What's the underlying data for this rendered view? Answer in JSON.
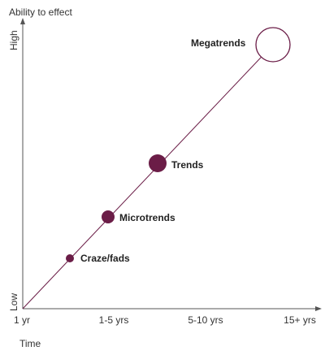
{
  "y_axis": {
    "title": "Ability to effect",
    "high_label": "High",
    "low_label": "Low"
  },
  "x_axis": {
    "title": "Time",
    "ticks": [
      "1 yr",
      "1-5 yrs",
      "5-10 yrs",
      "15+ yrs"
    ]
  },
  "colors": {
    "accent": "#6b1d47",
    "axis": "#555555"
  },
  "points": [
    {
      "label": "Craze/fads",
      "style": "filled",
      "relative_size": 1
    },
    {
      "label": "Microtrends",
      "style": "filled",
      "relative_size": 1.6
    },
    {
      "label": "Trends",
      "style": "filled",
      "relative_size": 2
    },
    {
      "label": "Megatrends",
      "style": "outline",
      "relative_size": 4
    }
  ]
}
